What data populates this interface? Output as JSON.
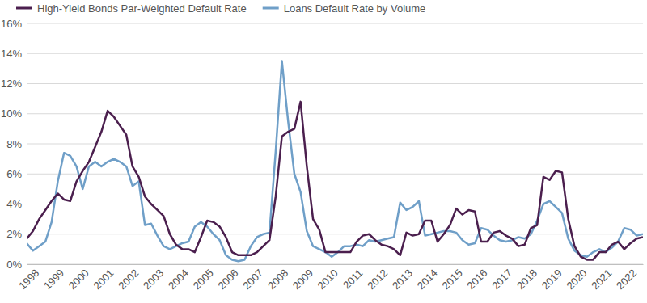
{
  "chart_data": {
    "type": "line",
    "legend": "top",
    "grid": true,
    "x": [
      1997.75,
      1998,
      1998.25,
      1998.5,
      1998.75,
      1999,
      1999.25,
      1999.5,
      1999.75,
      2000,
      2000.25,
      2000.5,
      2000.75,
      2001,
      2001.25,
      2001.5,
      2001.75,
      2002,
      2002.25,
      2002.5,
      2002.75,
      2003,
      2003.25,
      2003.5,
      2003.75,
      2004,
      2004.25,
      2004.5,
      2004.75,
      2005,
      2005.25,
      2005.5,
      2005.75,
      2006,
      2006.25,
      2006.5,
      2006.75,
      2007,
      2007.25,
      2007.5,
      2007.75,
      2008,
      2008.25,
      2008.5,
      2008.75,
      2009,
      2009.25,
      2009.5,
      2009.75,
      2010,
      2010.25,
      2010.5,
      2010.75,
      2011,
      2011.25,
      2011.5,
      2011.75,
      2012,
      2012.25,
      2012.5,
      2012.75,
      2013,
      2013.25,
      2013.5,
      2013.75,
      2014,
      2014.25,
      2014.5,
      2014.75,
      2015,
      2015.25,
      2015.5,
      2015.75,
      2016,
      2016.25,
      2016.5,
      2016.75,
      2017,
      2017.25,
      2017.5,
      2017.75,
      2018,
      2018.25,
      2018.5,
      2018.75,
      2019,
      2019.25,
      2019.5,
      2019.75,
      2020,
      2020.25,
      2020.5,
      2020.75,
      2021,
      2021.25,
      2021.5,
      2021.75,
      2022,
      2022.25,
      2022.5
    ],
    "xlim": [
      1997.75,
      2022.5
    ],
    "xticks": [
      1998,
      1999,
      2000,
      2001,
      2002,
      2003,
      2004,
      2005,
      2006,
      2007,
      2008,
      2009,
      2010,
      2011,
      2012,
      2013,
      2014,
      2015,
      2016,
      2017,
      2018,
      2019,
      2020,
      2021,
      2022
    ],
    "ylim": [
      0,
      16
    ],
    "yticks": [
      {
        "value": 0,
        "label": "0%"
      },
      {
        "value": 2,
        "label": "2%"
      },
      {
        "value": 4,
        "label": "4%"
      },
      {
        "value": 6,
        "label": "6%"
      },
      {
        "value": 8,
        "label": "8%"
      },
      {
        "value": 10,
        "label": "10%"
      },
      {
        "value": 12,
        "label": "12%"
      },
      {
        "value": 14,
        "label": "14%"
      },
      {
        "value": 16,
        "label": "16%"
      }
    ],
    "series": [
      {
        "name": "High-Yield Bonds Par-Weighted Default Rate",
        "color": "#4b1f4e",
        "values": [
          1.7,
          2.2,
          3.0,
          3.6,
          4.2,
          4.7,
          4.3,
          4.2,
          5.5,
          6.2,
          6.8,
          7.8,
          8.8,
          10.2,
          9.8,
          9.2,
          8.6,
          6.5,
          5.8,
          4.5,
          4.0,
          3.6,
          3.2,
          2.0,
          1.3,
          1.0,
          1.0,
          0.8,
          1.8,
          2.9,
          2.8,
          2.5,
          1.8,
          0.8,
          0.6,
          0.6,
          0.6,
          0.8,
          1.2,
          1.6,
          4.5,
          8.5,
          8.8,
          9.0,
          10.8,
          6.5,
          3.0,
          2.3,
          0.8,
          0.8,
          0.8,
          0.8,
          0.8,
          1.5,
          1.9,
          2.0,
          1.6,
          1.3,
          1.2,
          1.0,
          0.6,
          2.1,
          1.9,
          2.0,
          2.9,
          2.9,
          1.5,
          2.0,
          2.6,
          3.7,
          3.3,
          3.6,
          3.5,
          1.5,
          1.5,
          2.1,
          2.2,
          1.9,
          1.7,
          1.2,
          1.3,
          2.4,
          2.6,
          5.8,
          5.6,
          6.2,
          6.1,
          3.0,
          1.2,
          0.5,
          0.3,
          0.3,
          0.8,
          0.8,
          1.3,
          1.5,
          1.0,
          1.4,
          1.7,
          1.8
        ]
      },
      {
        "name": "Loans Default Rate by Volume",
        "color": "#6f9fc8",
        "values": [
          1.4,
          0.9,
          1.2,
          1.5,
          2.8,
          5.5,
          7.4,
          7.2,
          6.5,
          5.0,
          6.5,
          6.8,
          6.5,
          6.8,
          7.0,
          6.8,
          6.5,
          5.2,
          5.5,
          2.6,
          2.7,
          1.9,
          1.2,
          1.0,
          1.2,
          1.4,
          1.5,
          2.5,
          2.8,
          2.5,
          2.0,
          1.6,
          0.6,
          0.3,
          0.2,
          0.3,
          1.2,
          1.8,
          2.0,
          2.1,
          7.5,
          13.5,
          9.5,
          6.0,
          4.8,
          2.2,
          1.2,
          1.0,
          0.8,
          0.5,
          0.8,
          1.2,
          1.2,
          1.3,
          1.2,
          1.6,
          1.5,
          1.6,
          1.7,
          1.8,
          4.1,
          3.6,
          3.8,
          4.2,
          1.9,
          2.0,
          2.1,
          2.2,
          2.2,
          2.1,
          1.6,
          1.3,
          1.4,
          2.4,
          2.3,
          1.9,
          1.6,
          1.5,
          1.6,
          1.8,
          1.7,
          2.0,
          2.9,
          4.0,
          4.2,
          3.8,
          3.4,
          1.7,
          0.9,
          0.6,
          0.5,
          0.8,
          1.0,
          0.8,
          1.1,
          1.5,
          2.4,
          2.3,
          1.9,
          2.0
        ]
      }
    ]
  }
}
